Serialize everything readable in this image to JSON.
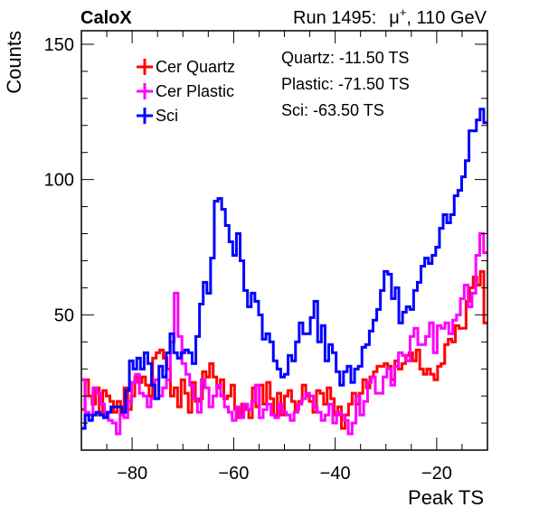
{
  "header": {
    "brand": "CaloX",
    "run_label": "Run 1495:",
    "particle": "μ",
    "particle_charge": "+",
    "energy": ", 110 GeV"
  },
  "colors": {
    "quartz": "#ff0000",
    "plastic": "#ff00ff",
    "sci": "#0000ff",
    "axis": "#000000"
  },
  "chart_data": {
    "type": "line",
    "style": "step-histogram",
    "xlabel": "Peak TS",
    "ylabel": "Counts",
    "xlim": [
      -90,
      -10
    ],
    "ylim": [
      0,
      155
    ],
    "x_ticks": [
      -80,
      -60,
      -40,
      -20
    ],
    "x_tick_labels": [
      "−80",
      "−60",
      "−40",
      "−20"
    ],
    "y_ticks": [
      50,
      100,
      150
    ],
    "y_tick_labels": [
      "50",
      "100",
      "150"
    ],
    "bin_start": -90,
    "bin_width": 1,
    "legend": {
      "placement": "top-left",
      "entries": [
        {
          "label": "Cer Quartz",
          "series": "quartz"
        },
        {
          "label": "Cer Plastic",
          "series": "plastic"
        },
        {
          "label": "Sci",
          "series": "sci"
        }
      ]
    },
    "annotations": [
      "Quartz: -11.50 TS",
      "Plastic: -71.50 TS",
      "Sci: -63.50 TS"
    ],
    "series": [
      {
        "key": "quartz",
        "name": "Cer Quartz",
        "values": [
          15,
          26,
          20,
          17,
          23,
          13,
          22,
          20,
          18,
          14,
          18,
          13,
          23,
          15,
          20,
          27,
          25,
          27,
          24,
          20,
          34,
          36,
          37,
          34,
          30,
          20,
          23,
          16,
          26,
          21,
          14,
          25,
          18,
          19,
          29,
          27,
          32,
          27,
          23,
          26,
          19,
          20,
          24,
          15,
          12,
          17,
          15,
          12,
          23,
          16,
          24,
          17,
          25,
          19,
          13,
          21,
          13,
          20,
          22,
          18,
          15,
          18,
          24,
          20,
          18,
          14,
          22,
          21,
          17,
          23,
          19,
          13,
          16,
          8,
          13,
          17,
          21,
          17,
          21,
          26,
          23,
          27,
          29,
          31,
          31,
          32,
          31,
          26,
          33,
          30,
          32,
          35,
          36,
          33,
          37,
          30,
          28,
          30,
          28,
          26,
          31,
          32,
          39,
          41,
          40,
          46,
          45,
          45,
          55,
          60,
          64,
          61,
          66,
          47
        ]
      },
      {
        "key": "plastic",
        "name": "Cer Plastic",
        "values": [
          26,
          14,
          13,
          23,
          21,
          17,
          13,
          11,
          10,
          6,
          13,
          12,
          18,
          25,
          28,
          21,
          20,
          16,
          19,
          26,
          20,
          23,
          26,
          40,
          58,
          42,
          32,
          28,
          24,
          19,
          14,
          26,
          23,
          16,
          20,
          24,
          20,
          16,
          14,
          11,
          16,
          12,
          17,
          15,
          18,
          24,
          12,
          15,
          17,
          13,
          12,
          17,
          14,
          13,
          11,
          14,
          17,
          19,
          21,
          20,
          16,
          14,
          11,
          13,
          17,
          10,
          14,
          13,
          11,
          6,
          10,
          20,
          13,
          18,
          25,
          27,
          21,
          21,
          27,
          30,
          24,
          31,
          36,
          35,
          33,
          42,
          45,
          39,
          39,
          42,
          47,
          36,
          46,
          45,
          47,
          43,
          48,
          50,
          56,
          61,
          53,
          58,
          72,
          80,
          73
        ]
      },
      {
        "key": "sci",
        "name": "Sci",
        "values": [
          8,
          13,
          11,
          13,
          14,
          13,
          12,
          14,
          16,
          16,
          16,
          14,
          22,
          33,
          30,
          34,
          30,
          36,
          32,
          24,
          19,
          31,
          27,
          36,
          43,
          36,
          34,
          36,
          37,
          36,
          32,
          42,
          54,
          62,
          58,
          71,
          92,
          93,
          89,
          83,
          77,
          72,
          80,
          70,
          59,
          53,
          58,
          55,
          50,
          41,
          43,
          40,
          33,
          30,
          27,
          28,
          35,
          33,
          40,
          47,
          43,
          43,
          49,
          55,
          40,
          46,
          33,
          39,
          36,
          29,
          24,
          29,
          31,
          25,
          30,
          31,
          38,
          39,
          44,
          48,
          52,
          59,
          66,
          65,
          56,
          60,
          47,
          51,
          53,
          52,
          59,
          62,
          68,
          71,
          69,
          72,
          75,
          82,
          87,
          84,
          87,
          94,
          96,
          101,
          107,
          118,
          118,
          122,
          126,
          121
        ]
      },
      {
        "key": "sci_dummy",
        "name": "",
        "values": []
      }
    ]
  }
}
